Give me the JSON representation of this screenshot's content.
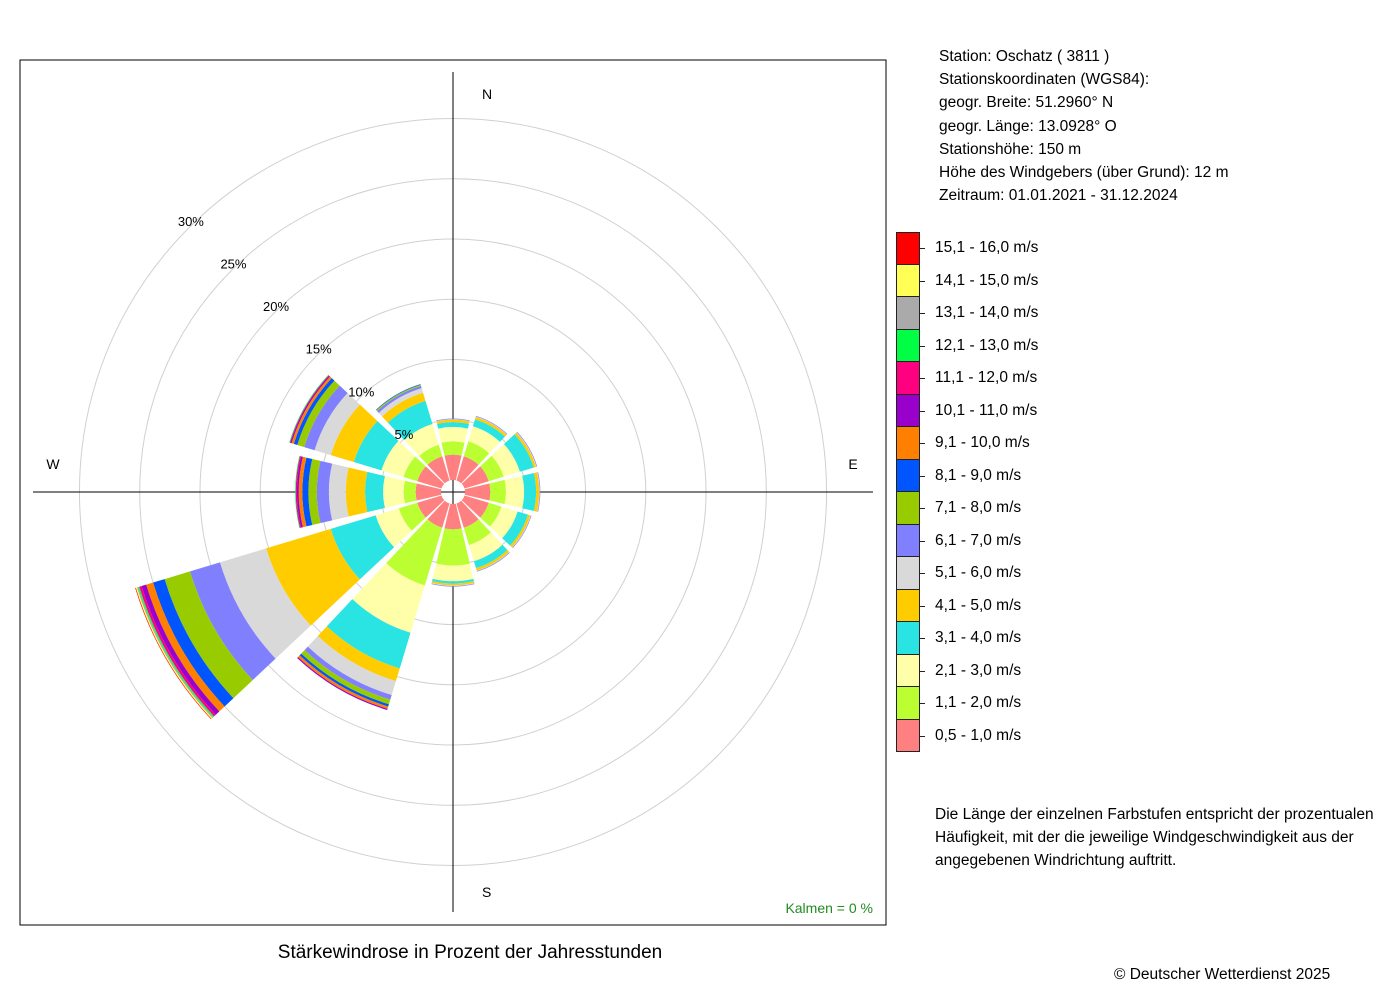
{
  "chart_data": {
    "type": "wind-rose",
    "title": "Stärkewindrose in Prozent der Jahresstunden",
    "directions": [
      "N",
      "NNO",
      "ONO",
      "O",
      "OSO",
      "SSO",
      "S",
      "SSW",
      "WSW",
      "W",
      "WNW",
      "NNW"
    ],
    "direction_angles_deg": [
      0,
      30,
      60,
      90,
      120,
      150,
      180,
      210,
      240,
      270,
      300,
      330
    ],
    "compass_labels": [
      "N",
      "E",
      "S",
      "W"
    ],
    "radial_axis": {
      "ticks": [
        5,
        10,
        15,
        20,
        25,
        30
      ],
      "tick_labels": [
        "5%",
        "10%",
        "15%",
        "20%",
        "25%",
        "30%"
      ],
      "max": 31,
      "inner_hole": 1.0
    },
    "classes": [
      {
        "label": "0,5 - 1,0 m/s",
        "color": "#ff8080"
      },
      {
        "label": "1,1 - 2,0 m/s",
        "color": "#bbff33"
      },
      {
        "label": "2,1 - 3,0 m/s",
        "color": "#ffffaa"
      },
      {
        "label": "3,1 - 4,0 m/s",
        "color": "#2ae4e4"
      },
      {
        "label": "4,1 - 5,0 m/s",
        "color": "#ffcc00"
      },
      {
        "label": "5,1 - 6,0 m/s",
        "color": "#d9d9d9"
      },
      {
        "label": "6,1 - 7,0 m/s",
        "color": "#8080ff"
      },
      {
        "label": "7,1 - 8,0 m/s",
        "color": "#99cc00"
      },
      {
        "label": "8,1 - 9,0 m/s",
        "color": "#0055ff"
      },
      {
        "label": "9,1 - 10,0 m/s",
        "color": "#ff8000"
      },
      {
        "label": "10,1 - 11,0 m/s",
        "color": "#9900cc"
      },
      {
        "label": "11,1 - 12,0 m/s",
        "color": "#ff0080"
      },
      {
        "label": "12,1 - 13,0 m/s",
        "color": "#00ff44"
      },
      {
        "label": "13,1 - 14,0 m/s",
        "color": "#aaaaaa"
      },
      {
        "label": "14,1 - 15,0 m/s",
        "color": "#ffff55"
      },
      {
        "label": "15,1 - 16,0 m/s",
        "color": "#ff0000"
      }
    ],
    "series_cumulative_percent": [
      {
        "direction": "N",
        "values": [
          2.1,
          3.2,
          4.4,
          4.8,
          5.0,
          5.05,
          5.1
        ]
      },
      {
        "direction": "NNO",
        "values": [
          2.1,
          3.4,
          4.7,
          5.3,
          5.5,
          5.55,
          5.6
        ]
      },
      {
        "direction": "ONO",
        "values": [
          2.1,
          3.4,
          4.8,
          6.0,
          6.2,
          6.25,
          6.3
        ]
      },
      {
        "direction": "O",
        "values": [
          2.1,
          3.4,
          4.9,
          5.9,
          6.15,
          6.2,
          6.25
        ]
      },
      {
        "direction": "OSO",
        "values": [
          2.1,
          3.2,
          4.6,
          5.5,
          5.7,
          5.75,
          5.8
        ]
      },
      {
        "direction": "SSO",
        "values": [
          2.1,
          3.6,
          5.0,
          5.6,
          5.8,
          5.85,
          5.9
        ]
      },
      {
        "direction": "S",
        "values": [
          2.1,
          5.1,
          6.4,
          6.6,
          6.75,
          6.8,
          6.85
        ]
      },
      {
        "direction": "SSW",
        "values": [
          2.1,
          7.1,
          11.2,
          14.3,
          15.4,
          16.6,
          17.0,
          17.4,
          17.6,
          17.8,
          17.9
        ]
      },
      {
        "direction": "WSW",
        "values": [
          2.1,
          3.7,
          5.7,
          9.6,
          15.2,
          19.2,
          21.8,
          24.0,
          25.0,
          25.6,
          26.0,
          26.2,
          26.3,
          26.4,
          26.5,
          26.55
        ]
      },
      {
        "direction": "W",
        "values": [
          2.1,
          3.1,
          4.8,
          6.3,
          7.9,
          9.3,
          10.3,
          11.0,
          11.5,
          11.8,
          11.95,
          12.05,
          12.1
        ]
      },
      {
        "direction": "WNW",
        "values": [
          2.1,
          3.3,
          5.2,
          7.6,
          9.6,
          11.0,
          11.9,
          12.5,
          12.8,
          13.0,
          13.1,
          13.15,
          13.2
        ]
      },
      {
        "direction": "NNW",
        "values": [
          2.1,
          3.1,
          4.9,
          6.9,
          7.6,
          8.0,
          8.2,
          8.3,
          8.35
        ]
      }
    ],
    "calm": "Kalmen  =  0 %"
  },
  "station": {
    "line1": "Station:  Oschatz  ( 3811 )",
    "line2": "Stationskoordinaten (WGS84):",
    "line3": "geogr. Breite: 51.2960° N",
    "line4": "geogr. Länge: 13.0928° O",
    "line5": "Stationshöhe: 150 m",
    "line6": "Höhe des Windgebers (über Grund): 12 m",
    "line7": "Zeitraum: 01.01.2021 - 31.12.2024"
  },
  "note": "Die Länge der einzelnen Farbstufen entspricht der prozentualen Häufigkeit, mit der die jeweilige Windgeschwindigkeit aus der angegebenen Windrichtung auftritt.",
  "copyright": "© Deutscher Wetterdienst  2025",
  "colors": {
    "calm_text": "#228b22",
    "axis": "#000000",
    "grid": "#d0d0d0"
  }
}
